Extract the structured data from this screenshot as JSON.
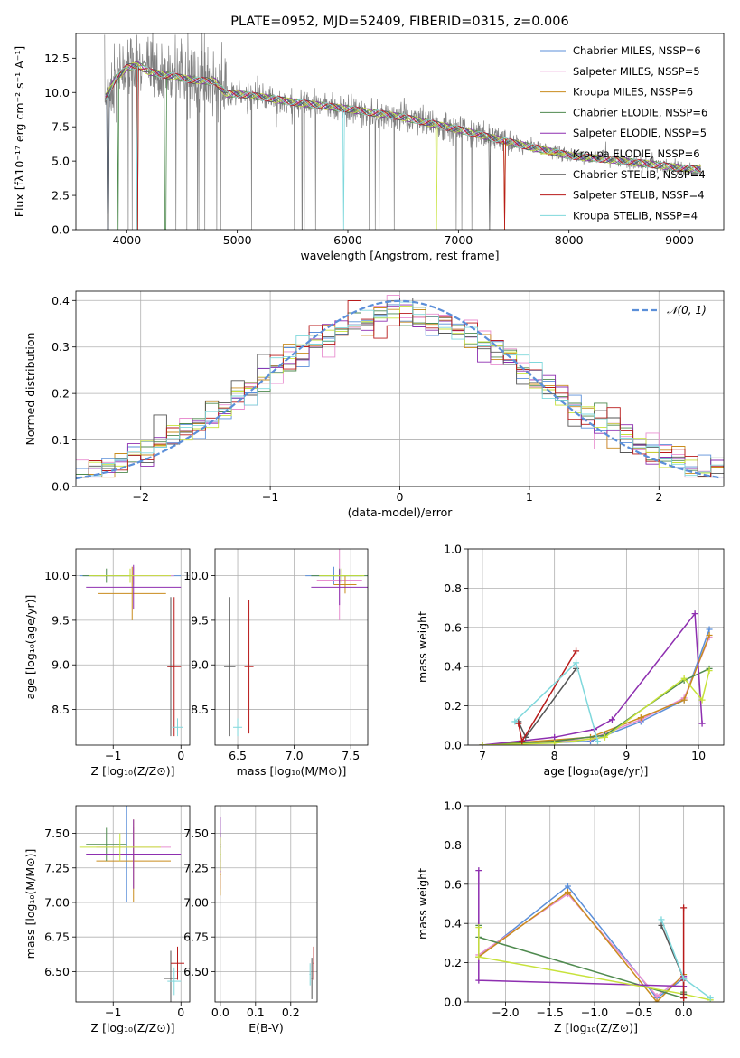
{
  "colors": {
    "Chabrier MILES": "#5b8fd9",
    "Salpeter MILES": "#e88fd0",
    "Kroupa MILES": "#c98c1e",
    "Chabrier ELODIE": "#4f8a4f",
    "Salpeter ELODIE": "#8e2fb0",
    "Kroupa ELODIE": "#c7e23a",
    "Chabrier STELIB": "#555555",
    "Salpeter STELIB": "#b81a1a",
    "Kroupa STELIB": "#7fd8dc",
    "data": "#808080",
    "normal": "#5b8fd9"
  },
  "chart_data": [
    {
      "id": "spectrum",
      "type": "line",
      "title": "PLATE=0952, MJD=52409, FIBERID=0315, z=0.006",
      "xlabel": "wavelength [Angstrom, rest frame]",
      "ylabel": "Flux [fλ10⁻¹⁷ erg cm⁻² s⁻¹ A⁻¹]",
      "xlim": [
        3540,
        9400
      ],
      "ylim": [
        0,
        14.3
      ],
      "xticks": [
        4000,
        5000,
        6000,
        7000,
        8000,
        9000
      ],
      "yticks": [
        0.0,
        2.5,
        5.0,
        7.5,
        10.0,
        12.5
      ],
      "legend_position": "top-right",
      "legend": [
        "Chabrier MILES, NSSP=6",
        "Salpeter MILES, NSSP=5",
        "Kroupa MILES, NSSP=6",
        "Chabrier ELODIE, NSSP=6",
        "Salpeter ELODIE, NSSP=5",
        "Kroupa ELODIE, NSSP=6",
        "Chabrier STELIB, NSSP=4",
        "Salpeter STELIB, NSSP=4",
        "Kroupa STELIB, NSSP=4"
      ],
      "continuum_x": [
        3800,
        3900,
        4000,
        4100,
        4200,
        4400,
        4600,
        4800,
        4900,
        5000,
        5200,
        5500,
        6000,
        6500,
        7000,
        7500,
        8000,
        8500,
        9000,
        9200
      ],
      "continuum_y": [
        9.5,
        11.0,
        11.8,
        12.0,
        11.5,
        11.2,
        10.9,
        10.8,
        9.9,
        9.9,
        9.7,
        9.3,
        8.8,
        8.2,
        7.3,
        6.3,
        5.4,
        5.0,
        4.5,
        4.4
      ]
    },
    {
      "id": "residuals",
      "type": "line",
      "xlabel": "(data-model)/error",
      "ylabel": "Normed distribution",
      "xlim": [
        -2.5,
        2.5
      ],
      "ylim": [
        0,
        0.42
      ],
      "xticks": [
        -2,
        -1,
        0,
        1,
        2
      ],
      "yticks": [
        0.0,
        0.1,
        0.2,
        0.3,
        0.4
      ],
      "grid": true,
      "legend_position": "top-right",
      "legend": [
        "𝒩(0, 1)"
      ]
    },
    {
      "id": "age-vs-Z",
      "type": "scatter",
      "xlabel": "Z [log₁₀(Z/Z⊙)]",
      "ylabel": "age  [log₁₀(age/yr)]",
      "xlim": [
        -1.55,
        0.13
      ],
      "ylim": [
        8.1,
        10.3
      ],
      "xticks": [
        -1,
        0
      ],
      "yticks": [
        8.5,
        9.0,
        9.5,
        10.0
      ],
      "grid": true
    },
    {
      "id": "age-vs-mass",
      "type": "scatter",
      "xlabel": "mass [log₁₀(M/M⊙)]",
      "xlim": [
        6.3,
        7.65
      ],
      "ylim": [
        8.1,
        10.3
      ],
      "xticks": [
        6.5,
        7.0,
        7.5
      ],
      "yticks": [
        8.5,
        9.0,
        9.5,
        10.0
      ],
      "grid": true
    },
    {
      "id": "weight-vs-age",
      "type": "line",
      "xlabel": "age  [log₁₀(age/yr)]",
      "ylabel": "mass weight",
      "xlim": [
        6.8,
        10.35
      ],
      "ylim": [
        0,
        1.0
      ],
      "xticks": [
        7,
        8,
        9,
        10
      ],
      "yticks": [
        0.0,
        0.2,
        0.4,
        0.6,
        0.8,
        1.0
      ],
      "grid": true,
      "series": [
        {
          "color": "Chabrier MILES",
          "x": [
            7.0,
            8.5,
            9.2,
            9.8,
            10.15
          ],
          "y": [
            0.0,
            0.02,
            0.12,
            0.23,
            0.59
          ]
        },
        {
          "color": "Salpeter MILES",
          "x": [
            7.0,
            8.5,
            9.2,
            9.8,
            10.15
          ],
          "y": [
            0.0,
            0.03,
            0.13,
            0.24,
            0.55
          ]
        },
        {
          "color": "Kroupa MILES",
          "x": [
            7.0,
            8.5,
            9.2,
            9.8,
            10.15
          ],
          "y": [
            0.0,
            0.04,
            0.14,
            0.23,
            0.56
          ]
        },
        {
          "color": "Chabrier ELODIE",
          "x": [
            7.0,
            8.0,
            8.7,
            9.8,
            10.15
          ],
          "y": [
            0.0,
            0.02,
            0.05,
            0.33,
            0.39
          ]
        },
        {
          "color": "Salpeter ELODIE",
          "x": [
            7.0,
            8.0,
            8.55,
            8.8,
            9.95,
            10.05
          ],
          "y": [
            0.0,
            0.04,
            0.08,
            0.13,
            0.67,
            0.11
          ]
        },
        {
          "color": "Kroupa ELODIE",
          "x": [
            7.0,
            8.0,
            8.7,
            9.8,
            10.05,
            10.15
          ],
          "y": [
            0.0,
            0.01,
            0.04,
            0.34,
            0.23,
            0.38
          ]
        },
        {
          "color": "Chabrier STELIB",
          "x": [
            7.5,
            7.6,
            8.3
          ],
          "y": [
            0.12,
            0.04,
            0.39
          ]
        },
        {
          "color": "Salpeter STELIB",
          "x": [
            7.5,
            7.55,
            8.3
          ],
          "y": [
            0.11,
            0.02,
            0.48
          ]
        },
        {
          "color": "Kroupa STELIB",
          "x": [
            7.45,
            8.3,
            8.6
          ],
          "y": [
            0.12,
            0.42,
            0.02
          ]
        }
      ]
    },
    {
      "id": "mass-vs-Z",
      "type": "scatter",
      "xlabel": "Z [log₁₀(Z/Z⊙)]",
      "ylabel": "mass [log₁₀(M/M⊙)]",
      "xlim": [
        -1.55,
        0.13
      ],
      "ylim": [
        6.28,
        7.7
      ],
      "xticks": [
        -1,
        0
      ],
      "yticks": [
        6.5,
        6.75,
        7.0,
        7.25,
        7.5
      ],
      "grid": true
    },
    {
      "id": "mass-vs-EBV",
      "type": "scatter",
      "xlabel": "E(B-V)",
      "xlim": [
        -0.015,
        0.275
      ],
      "ylim": [
        6.28,
        7.7
      ],
      "xticks": [
        0.0,
        0.1,
        0.2
      ],
      "yticks": [
        6.5,
        6.75,
        7.0,
        7.25,
        7.5
      ],
      "grid": true
    },
    {
      "id": "weight-vs-Z",
      "type": "line",
      "xlabel": "Z [log₁₀(Z/Z⊙)]",
      "ylabel": "mass weight",
      "xlim": [
        -2.42,
        0.45
      ],
      "ylim": [
        0,
        1.0
      ],
      "xticks": [
        -2.0,
        -1.5,
        -1.0,
        -0.5,
        0.0
      ],
      "yticks": [
        0.0,
        0.2,
        0.4,
        0.6,
        0.8,
        1.0
      ],
      "grid": true,
      "series": [
        {
          "color": "Chabrier MILES",
          "x": [
            -2.3,
            -1.3,
            -0.3,
            0.0
          ],
          "y": [
            0.23,
            0.59,
            0.02,
            0.12
          ]
        },
        {
          "color": "Salpeter MILES",
          "x": [
            -2.3,
            -1.3,
            -0.3,
            0.0
          ],
          "y": [
            0.24,
            0.55,
            0.03,
            0.13
          ]
        },
        {
          "color": "Kroupa MILES",
          "x": [
            -2.3,
            -1.3,
            -0.3,
            0.0
          ],
          "y": [
            0.23,
            0.56,
            0.0,
            0.14
          ]
        },
        {
          "color": "Chabrier ELODIE",
          "x": [
            -2.3,
            -2.3,
            0.0,
            0.0
          ],
          "y": [
            0.39,
            0.33,
            0.02,
            0.05
          ]
        },
        {
          "color": "Salpeter ELODIE",
          "x": [
            -2.3,
            -2.3,
            0.0,
            0.0
          ],
          "y": [
            0.67,
            0.11,
            0.08,
            0.13
          ]
        },
        {
          "color": "Kroupa ELODIE",
          "x": [
            -2.3,
            -2.3,
            0.0,
            0.3
          ],
          "y": [
            0.38,
            0.23,
            0.04,
            0.01
          ]
        },
        {
          "color": "Chabrier STELIB",
          "x": [
            -0.25,
            0.0,
            0.0
          ],
          "y": [
            0.39,
            0.12,
            0.04
          ]
        },
        {
          "color": "Salpeter STELIB",
          "x": [
            0.0,
            0.0,
            0.0
          ],
          "y": [
            0.48,
            0.11,
            0.02
          ]
        },
        {
          "color": "Kroupa STELIB",
          "x": [
            -0.25,
            0.0,
            0.3
          ],
          "y": [
            0.42,
            0.12,
            0.02
          ]
        }
      ]
    }
  ]
}
